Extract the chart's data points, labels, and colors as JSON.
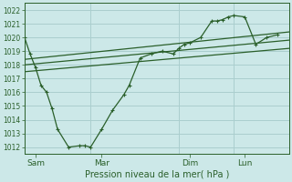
{
  "xlabel": "Pression niveau de la mer( hPa )",
  "background_color": "#cce8e8",
  "grid_color": "#aacece",
  "line_color": "#2a5f2a",
  "ylim": [
    1011.5,
    1022.5
  ],
  "yticks": [
    1012,
    1013,
    1014,
    1015,
    1016,
    1017,
    1018,
    1019,
    1020,
    1021,
    1022
  ],
  "xlim": [
    0,
    288
  ],
  "day_positions": [
    12,
    84,
    180,
    240
  ],
  "day_labels": [
    "Sam",
    "Mar",
    "Dim",
    "Lun"
  ],
  "vline_positions": [
    0,
    72,
    168,
    228,
    288
  ],
  "main_line": [
    [
      0,
      1020.0
    ],
    [
      6,
      1018.8
    ],
    [
      12,
      1017.8
    ],
    [
      18,
      1016.5
    ],
    [
      24,
      1016.0
    ],
    [
      30,
      1014.8
    ],
    [
      36,
      1013.3
    ],
    [
      48,
      1012.0
    ],
    [
      60,
      1012.1
    ],
    [
      66,
      1012.1
    ],
    [
      72,
      1012.0
    ],
    [
      84,
      1013.3
    ],
    [
      96,
      1014.7
    ],
    [
      108,
      1015.8
    ],
    [
      114,
      1016.5
    ],
    [
      126,
      1018.5
    ],
    [
      138,
      1018.8
    ],
    [
      150,
      1019.0
    ],
    [
      162,
      1018.8
    ],
    [
      168,
      1019.2
    ],
    [
      174,
      1019.5
    ],
    [
      180,
      1019.6
    ],
    [
      192,
      1020.0
    ],
    [
      204,
      1021.2
    ],
    [
      210,
      1021.2
    ],
    [
      216,
      1021.3
    ],
    [
      222,
      1021.5
    ],
    [
      228,
      1021.6
    ],
    [
      240,
      1021.5
    ],
    [
      252,
      1019.5
    ],
    [
      264,
      1020.0
    ],
    [
      276,
      1020.2
    ]
  ],
  "trend_line1": [
    [
      0,
      1017.5
    ],
    [
      288,
      1019.2
    ]
  ],
  "trend_line2": [
    [
      0,
      1018.0
    ],
    [
      288,
      1019.8
    ]
  ],
  "trend_line3": [
    [
      0,
      1018.4
    ],
    [
      288,
      1020.4
    ]
  ]
}
